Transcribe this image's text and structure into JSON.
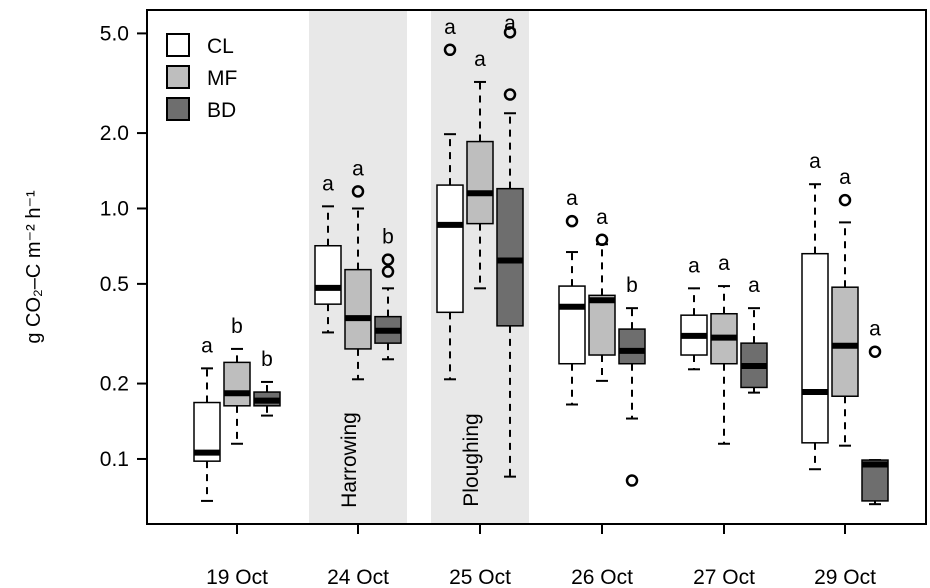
{
  "chart_data": {
    "type": "box",
    "ylabel": "g CO₂–C m⁻² h⁻¹",
    "yscale": "log",
    "ylim": [
      0.055,
      6.2
    ],
    "yticks": [
      {
        "value": 5.0,
        "label": "5.0"
      },
      {
        "value": 2.0,
        "label": "2.0"
      },
      {
        "value": 1.0,
        "label": "1.0"
      },
      {
        "value": 0.5,
        "label": "0.5"
      },
      {
        "value": 0.2,
        "label": "0.2"
      },
      {
        "value": 0.1,
        "label": "0.1"
      }
    ],
    "legend": {
      "position": "top-left",
      "entries": [
        {
          "name": "CL",
          "color": "#ffffff"
        },
        {
          "name": "MF",
          "color": "#bebebe"
        },
        {
          "name": "BD",
          "color": "#6e6e6e"
        }
      ]
    },
    "events": [
      {
        "group": "24 Oct",
        "label": "Harrowing",
        "shade": "#e8e8e8"
      },
      {
        "group": "25 Oct",
        "label": "Ploughing",
        "shade": "#e8e8e8"
      }
    ],
    "groups": [
      {
        "date": "19 Oct",
        "boxes": [
          {
            "series": "CL",
            "min": 0.068,
            "q1": 0.098,
            "median": 0.106,
            "q3": 0.168,
            "max": 0.23,
            "outliers": [],
            "letter": "a"
          },
          {
            "series": "MF",
            "min": 0.115,
            "q1": 0.163,
            "median": 0.183,
            "q3": 0.243,
            "max": 0.275,
            "outliers": [],
            "letter": "b"
          },
          {
            "series": "BD",
            "min": 0.149,
            "q1": 0.163,
            "median": 0.171,
            "q3": 0.185,
            "max": 0.203,
            "outliers": [],
            "letter": "b"
          }
        ]
      },
      {
        "date": "24 Oct",
        "boxes": [
          {
            "series": "CL",
            "min": 0.32,
            "q1": 0.415,
            "median": 0.482,
            "q3": 0.71,
            "max": 1.02,
            "outliers": [],
            "letter": "a"
          },
          {
            "series": "MF",
            "min": 0.208,
            "q1": 0.275,
            "median": 0.365,
            "q3": 0.57,
            "max": 1.0,
            "outliers": [
              1.17
            ],
            "letter": "a"
          },
          {
            "series": "BD",
            "min": 0.25,
            "q1": 0.29,
            "median": 0.325,
            "q3": 0.37,
            "max": 0.48,
            "outliers": [
              0.56,
              0.625
            ],
            "letter": "b"
          }
        ]
      },
      {
        "date": "25 Oct",
        "boxes": [
          {
            "series": "CL",
            "min": 0.208,
            "q1": 0.385,
            "median": 0.86,
            "q3": 1.24,
            "max": 1.98,
            "outliers": [
              4.3
            ],
            "letter": "a"
          },
          {
            "series": "MF",
            "min": 0.48,
            "q1": 0.87,
            "median": 1.15,
            "q3": 1.85,
            "max": 3.2,
            "outliers": [],
            "letter": "a"
          },
          {
            "series": "BD",
            "min": 0.085,
            "q1": 0.34,
            "median": 0.62,
            "q3": 1.2,
            "max": 2.4,
            "outliers": [
              2.85,
              5.05
            ],
            "letter": "a"
          }
        ]
      },
      {
        "date": "26 Oct",
        "boxes": [
          {
            "series": "CL",
            "min": 0.165,
            "q1": 0.24,
            "median": 0.405,
            "q3": 0.49,
            "max": 0.67,
            "outliers": [
              0.89
            ],
            "letter": "a"
          },
          {
            "series": "MF",
            "min": 0.205,
            "q1": 0.26,
            "median": 0.43,
            "q3": 0.45,
            "max": 0.72,
            "outliers": [
              0.75
            ],
            "letter": "a"
          },
          {
            "series": "BD",
            "min": 0.145,
            "q1": 0.24,
            "median": 0.27,
            "q3": 0.33,
            "max": 0.4,
            "outliers": [
              0.082
            ],
            "letter": "b"
          }
        ]
      },
      {
        "date": "27 Oct",
        "boxes": [
          {
            "series": "CL",
            "min": 0.228,
            "q1": 0.26,
            "median": 0.31,
            "q3": 0.375,
            "max": 0.48,
            "outliers": [],
            "letter": "a"
          },
          {
            "series": "MF",
            "min": 0.115,
            "q1": 0.24,
            "median": 0.305,
            "q3": 0.38,
            "max": 0.49,
            "outliers": [],
            "letter": "a"
          },
          {
            "series": "BD",
            "min": 0.184,
            "q1": 0.193,
            "median": 0.235,
            "q3": 0.29,
            "max": 0.4,
            "outliers": [],
            "letter": "a"
          }
        ]
      },
      {
        "date": "29 Oct",
        "boxes": [
          {
            "series": "CL",
            "min": 0.091,
            "q1": 0.116,
            "median": 0.185,
            "q3": 0.66,
            "max": 1.25,
            "outliers": [],
            "letter": "a"
          },
          {
            "series": "MF",
            "min": 0.113,
            "q1": 0.178,
            "median": 0.283,
            "q3": 0.485,
            "max": 0.88,
            "outliers": [
              1.08
            ],
            "letter": "a"
          },
          {
            "series": "BD",
            "min": 0.066,
            "q1": 0.068,
            "median": 0.095,
            "q3": 0.099,
            "max": 0.099,
            "outliers": [
              0.268
            ],
            "letter": "a"
          }
        ]
      }
    ]
  }
}
